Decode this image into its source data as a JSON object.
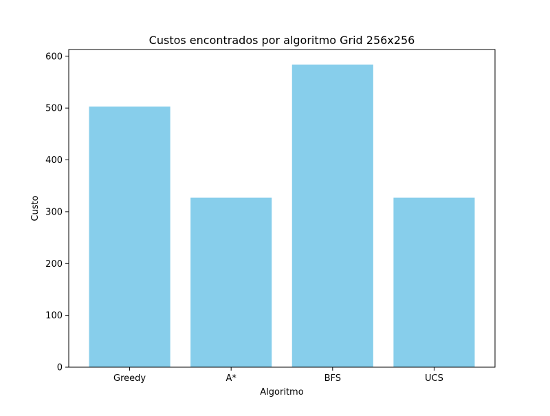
{
  "chart_data": {
    "type": "bar",
    "title": "Custos encontrados por algoritmo Grid 256x256",
    "xlabel": "Algoritmo",
    "ylabel": "Custo",
    "categories": [
      "Greedy",
      "A*",
      "BFS",
      "UCS"
    ],
    "values": [
      503,
      327,
      584,
      327
    ],
    "ylim": [
      0,
      613
    ],
    "yticks": [
      0,
      100,
      200,
      300,
      400,
      500,
      600
    ],
    "ytick_labels": [
      "0",
      "100",
      "200",
      "300",
      "400",
      "500",
      "600"
    ],
    "bar_color": "#87ceeb",
    "grid": false,
    "legend": false
  }
}
